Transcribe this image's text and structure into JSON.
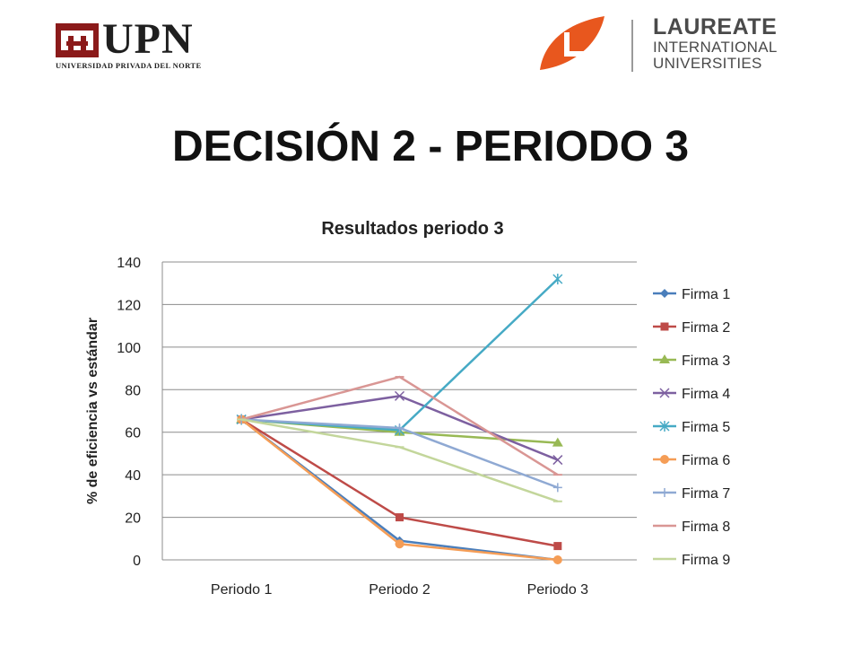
{
  "header": {
    "upn_wordmark": "UPN",
    "upn_subtitle": "UNIVERSIDAD PRIVADA DEL NORTE",
    "laureate_name": "LAUREATE",
    "laureate_line1": "INTERNATIONAL",
    "laureate_line2": "UNIVERSITIES"
  },
  "slide": {
    "title": "DECISIÓN 2 - PERIODO 3"
  },
  "colors": {
    "upn_red": "#8b1a1a",
    "laureate_orange": "#e8571e",
    "grid": "#8c8c8c"
  },
  "chart_data": {
    "type": "line",
    "title": "Resultados periodo 3",
    "xlabel": "",
    "ylabel": "% de eficiencia vs estándar",
    "categories": [
      "Periodo 1",
      "Periodo 2",
      "Periodo 3"
    ],
    "ylim": [
      0,
      140
    ],
    "yticks": [
      0,
      20,
      40,
      60,
      80,
      100,
      120,
      140
    ],
    "grid": true,
    "legend_position": "right",
    "series": [
      {
        "name": "Firma 1",
        "values": [
          66,
          9,
          0
        ],
        "color": "#4a7ebb",
        "marker": "diamond"
      },
      {
        "name": "Firma 2",
        "values": [
          66,
          20,
          6.5
        ],
        "color": "#be4b48",
        "marker": "square"
      },
      {
        "name": "Firma 3",
        "values": [
          66,
          60,
          55
        ],
        "color": "#98b954",
        "marker": "triangle"
      },
      {
        "name": "Firma 4",
        "values": [
          66,
          77,
          47
        ],
        "color": "#7d60a0",
        "marker": "x"
      },
      {
        "name": "Firma 5",
        "values": [
          66,
          61,
          132
        ],
        "color": "#46aac5",
        "marker": "star"
      },
      {
        "name": "Firma 6",
        "values": [
          66,
          7.5,
          0
        ],
        "color": "#f59d56",
        "marker": "circle"
      },
      {
        "name": "Firma 7",
        "values": [
          66,
          62,
          34
        ],
        "color": "#8fa9d3",
        "marker": "plus"
      },
      {
        "name": "Firma 8",
        "values": [
          66,
          86,
          40
        ],
        "color": "#d99694",
        "marker": "dash"
      },
      {
        "name": "Firma 9",
        "values": [
          66,
          53,
          27.5
        ],
        "color": "#c3d69b",
        "marker": "dash"
      }
    ]
  }
}
